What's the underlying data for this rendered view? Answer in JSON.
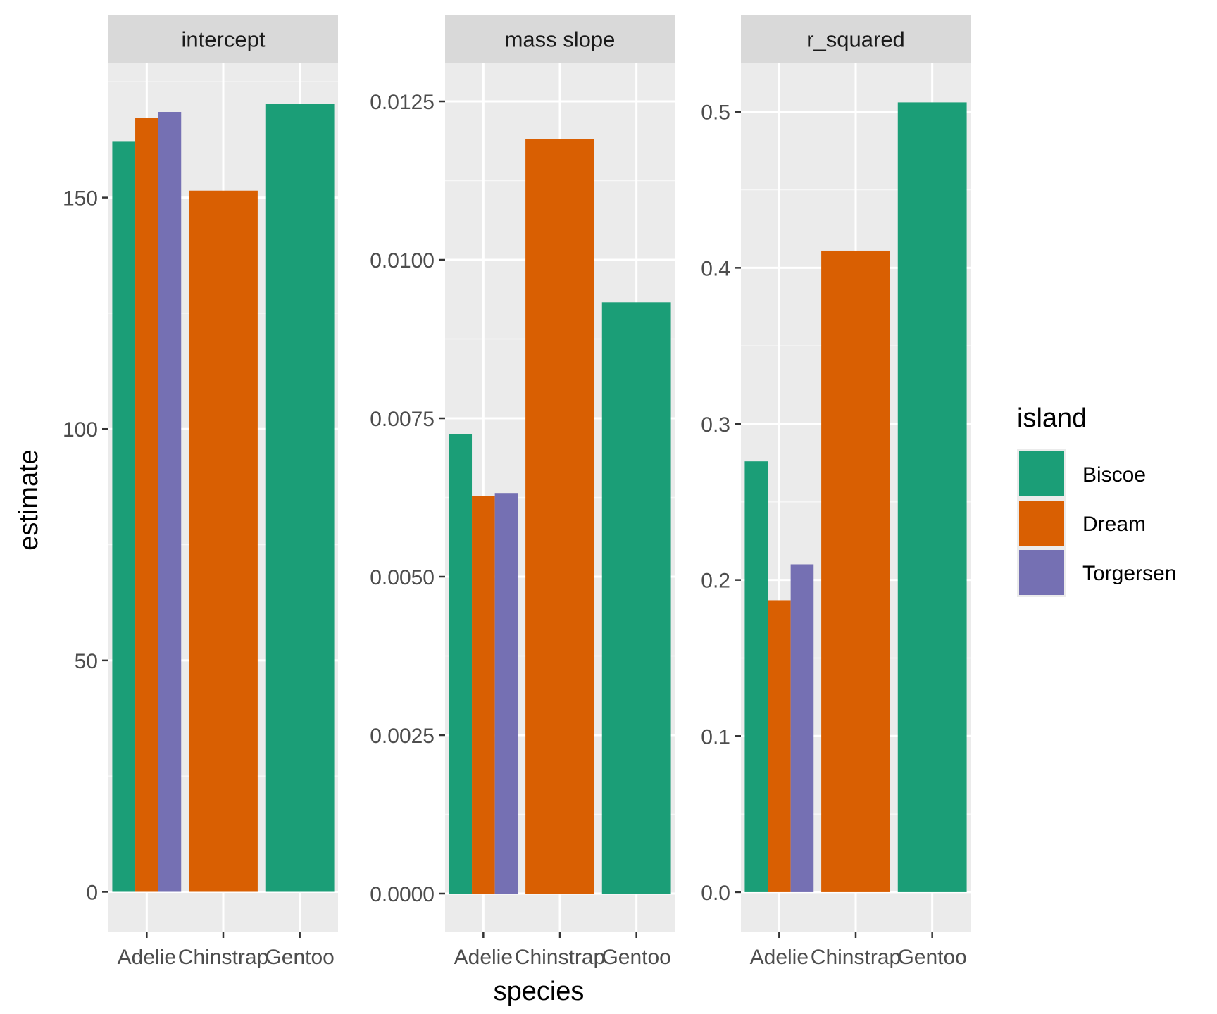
{
  "chart_data": {
    "type": "bar",
    "xlabel": "species",
    "ylabel": "estimate",
    "categories": [
      "Adelie",
      "Chinstrap",
      "Gentoo"
    ],
    "legend": {
      "title": "island",
      "position": "right",
      "entries": [
        {
          "name": "Biscoe",
          "color": "#1B9E77"
        },
        {
          "name": "Dream",
          "color": "#D95F02"
        },
        {
          "name": "Torgersen",
          "color": "#7570B3"
        }
      ]
    },
    "grid": true,
    "facets": [
      {
        "strip": "intercept",
        "ylim": [
          -8.6,
          179
        ],
        "ticks": [
          "0",
          "50",
          "100",
          "150"
        ],
        "series": [
          {
            "name": "Biscoe",
            "values": [
              162.2,
              null,
              170.2
            ]
          },
          {
            "name": "Dream",
            "values": [
              167.2,
              151.5,
              null
            ]
          },
          {
            "name": "Torgersen",
            "values": [
              168.5,
              null,
              null
            ]
          }
        ]
      },
      {
        "strip": "mass slope",
        "ylim": [
          -0.0006,
          0.0131
        ],
        "ticks": [
          "0.0000",
          "0.0025",
          "0.0050",
          "0.0075",
          "0.0100",
          "0.0125"
        ],
        "series": [
          {
            "name": "Biscoe",
            "values": [
              0.00725,
              null,
              0.00933
            ]
          },
          {
            "name": "Dream",
            "values": [
              0.00627,
              0.0119,
              null
            ]
          },
          {
            "name": "Torgersen",
            "values": [
              0.00632,
              null,
              null
            ]
          }
        ]
      },
      {
        "strip": "r_squared",
        "ylim": [
          -0.0253,
          0.531
        ],
        "ticks": [
          "0.0",
          "0.1",
          "0.2",
          "0.3",
          "0.4",
          "0.5"
        ],
        "series": [
          {
            "name": "Biscoe",
            "values": [
              0.276,
              null,
              0.506
            ]
          },
          {
            "name": "Dream",
            "values": [
              0.187,
              0.411,
              null
            ]
          },
          {
            "name": "Torgersen",
            "values": [
              0.21,
              null,
              null
            ]
          }
        ]
      }
    ]
  }
}
